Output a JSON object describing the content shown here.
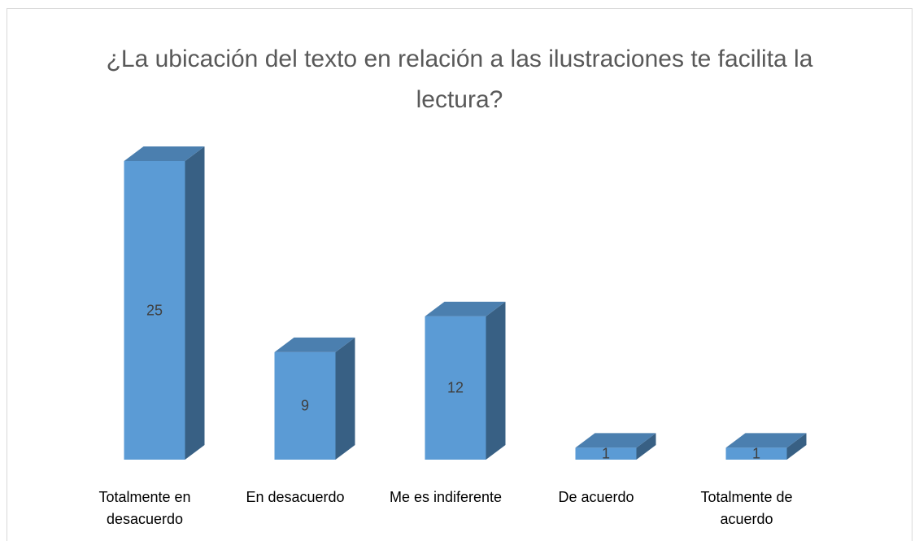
{
  "chart_data": {
    "type": "bar3d",
    "title": "¿La ubicación del texto en relación a las ilustraciones te facilita la lectura?",
    "categories": [
      "Totalmente en desacuerdo",
      "En desacuerdo",
      "Me es indiferente",
      "De acuerdo",
      "Totalmente de acuerdo"
    ],
    "values": [
      25,
      9,
      12,
      1,
      1
    ],
    "color": "#5b9bd5"
  }
}
